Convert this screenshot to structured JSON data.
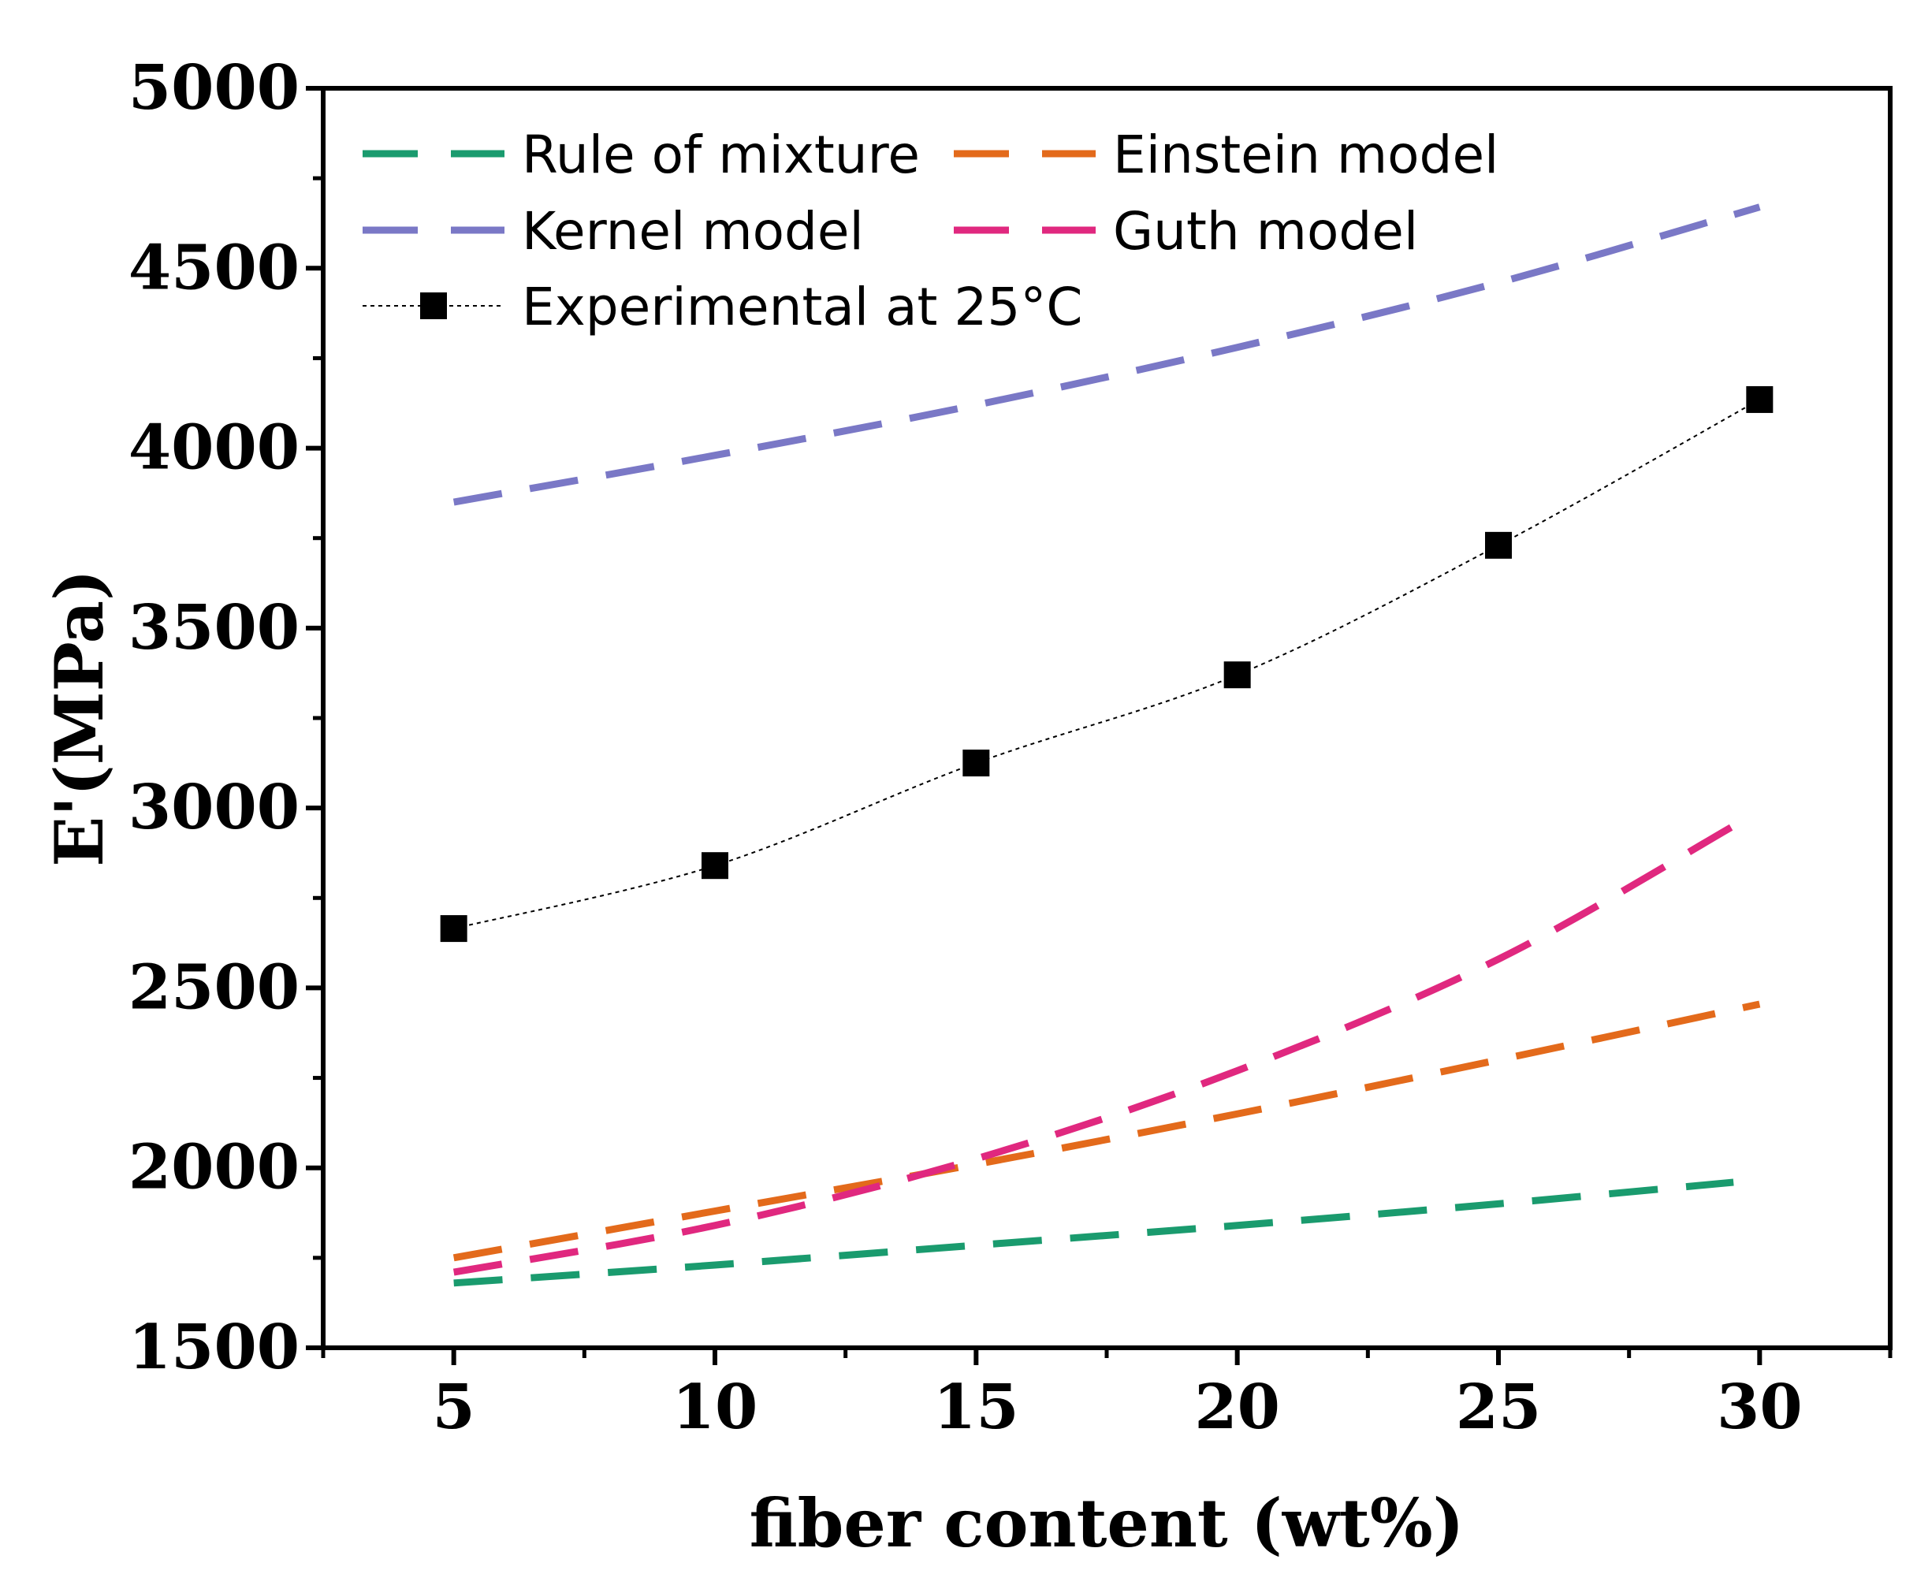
{
  "chart_data": {
    "type": "line",
    "title": "",
    "xlabel": "fiber content (wt%)",
    "ylabel": "E'(MPa)",
    "xlim": [
      2.5,
      32.5
    ],
    "ylim": [
      1500,
      5000
    ],
    "xticks": [
      5,
      10,
      15,
      20,
      25,
      30
    ],
    "yticks": [
      1500,
      2000,
      2500,
      3000,
      3500,
      4000,
      4500,
      5000
    ],
    "x": [
      5,
      10,
      15,
      20,
      25,
      30
    ],
    "series": [
      {
        "name": "Rule of mixture",
        "style": "dashed",
        "color": "#1a9b6e",
        "x": [
          5,
          10,
          15,
          20,
          25,
          29.5
        ],
        "values": [
          1680,
          1730,
          1785,
          1840,
          1900,
          1960
        ]
      },
      {
        "name": "Einstein model",
        "style": "dashed",
        "color": "#e36a1b",
        "x": [
          5,
          10,
          15,
          20,
          25,
          30
        ],
        "values": [
          1750,
          1880,
          2010,
          2150,
          2300,
          2455
        ]
      },
      {
        "name": "Kernel model",
        "style": "dashed",
        "color": "#7a78c6",
        "x": [
          5,
          10,
          15,
          20,
          25,
          30
        ],
        "values": [
          3850,
          3980,
          4120,
          4280,
          4460,
          4670
        ]
      },
      {
        "name": "Guth model",
        "style": "dashed",
        "color": "#e0287f",
        "x": [
          5,
          10,
          15,
          20,
          25,
          29.5
        ],
        "values": [
          1710,
          1840,
          2025,
          2270,
          2580,
          2950
        ]
      },
      {
        "name": "Experimental at 25°C",
        "style": "dotted-markers",
        "color": "#000000",
        "x": [
          5,
          10,
          15,
          20,
          25,
          30
        ],
        "values": [
          2665,
          2840,
          3125,
          3370,
          3730,
          4135
        ]
      }
    ],
    "legend": {
      "position": "top-left",
      "columns": 2
    }
  }
}
